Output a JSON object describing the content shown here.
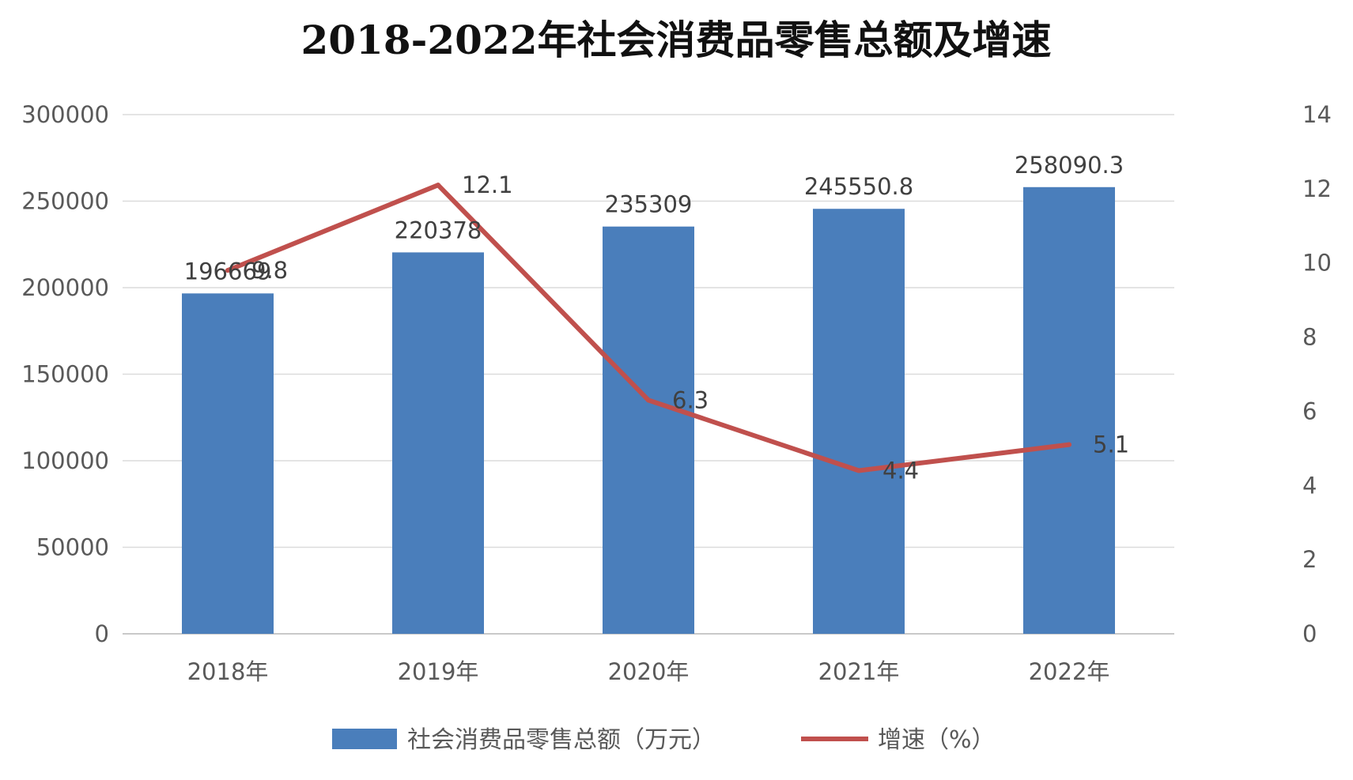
{
  "chart_data": {
    "type": "bar",
    "title": "2018-2022年社会消费品零售总额及增速",
    "categories": [
      "2018年",
      "2019年",
      "2020年",
      "2021年",
      "2022年"
    ],
    "series": [
      {
        "name": "社会消费品零售总额（万元）",
        "type": "bar",
        "axis": "left",
        "color": "#4a7ebb",
        "values": [
          196669,
          220378,
          235309,
          245550.8,
          258090.3
        ],
        "labels": [
          "196669",
          "220378",
          "235309",
          "245550.8",
          "258090.3"
        ]
      },
      {
        "name": "增速（%）",
        "type": "line",
        "axis": "right",
        "color": "#c0504d",
        "values": [
          9.8,
          12.1,
          6.3,
          4.4,
          5.1
        ],
        "labels": [
          "9.8",
          "12.1",
          "6.3",
          "4.4",
          "5.1"
        ]
      }
    ],
    "y_left": {
      "range": [
        0,
        300000
      ],
      "ticks": [
        0,
        50000,
        100000,
        150000,
        200000,
        250000,
        300000
      ],
      "tick_labels": [
        "0",
        "50000",
        "100000",
        "150000",
        "200000",
        "250000",
        "300000"
      ]
    },
    "y_right": {
      "range": [
        0,
        14
      ],
      "ticks": [
        0,
        2,
        4,
        6,
        8,
        10,
        12,
        14
      ],
      "tick_labels": [
        "0",
        "2",
        "4",
        "6",
        "8",
        "10",
        "12",
        "14"
      ]
    },
    "grid": true,
    "legend_position": "bottom"
  }
}
